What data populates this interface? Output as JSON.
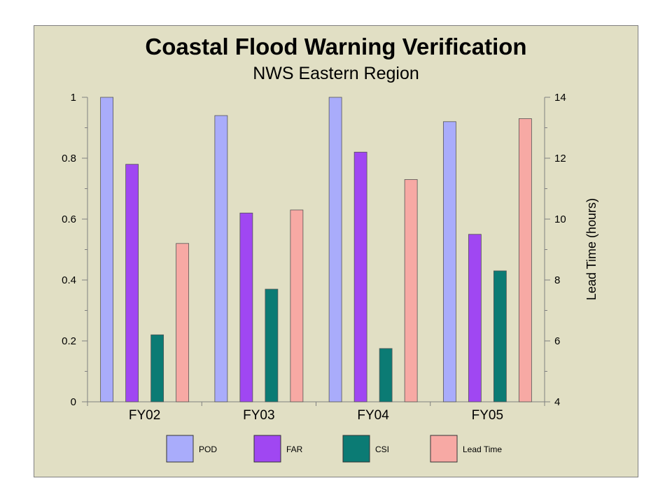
{
  "chart_data": {
    "type": "bar",
    "title": "Coastal Flood Warning Verification",
    "subtitle": "NWS Eastern Region",
    "categories": [
      "FY02",
      "FY03",
      "FY04",
      "FY05"
    ],
    "series": [
      {
        "name": "POD",
        "axis": "left",
        "color": "#a9acfb",
        "values": [
          1.0,
          0.94,
          1.0,
          0.92
        ]
      },
      {
        "name": "FAR",
        "axis": "left",
        "color": "#a047f2",
        "values": [
          0.78,
          0.62,
          0.82,
          0.55
        ]
      },
      {
        "name": "CSI",
        "axis": "left",
        "color": "#0b7b74",
        "values": [
          0.22,
          0.37,
          0.175,
          0.43
        ]
      },
      {
        "name": "Lead Time",
        "axis": "right",
        "color": "#f7a9a4",
        "values": [
          9.2,
          10.3,
          11.3,
          13.3
        ]
      }
    ],
    "y_left": {
      "label": "",
      "ylim": [
        0,
        1
      ],
      "ticks": [
        "0",
        "0.2",
        "0.4",
        "0.6",
        "0.8",
        "1"
      ]
    },
    "y_right": {
      "label": "Lead Time (hours)",
      "ylim": [
        4,
        14
      ],
      "ticks": [
        "4",
        "6",
        "8",
        "10",
        "12",
        "14"
      ]
    },
    "grid": false,
    "legend": "bottom"
  }
}
